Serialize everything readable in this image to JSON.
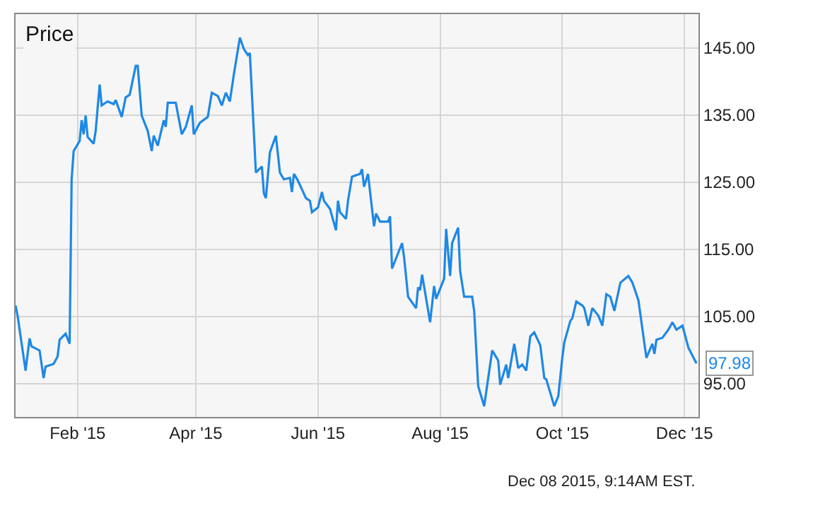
{
  "chart_data": {
    "type": "line",
    "title": "Price",
    "x": [
      "2015-01-01",
      "2015-01-02",
      "2015-01-06",
      "2015-01-08",
      "2015-01-09",
      "2015-01-13",
      "2015-01-15",
      "2015-01-16",
      "2015-01-20",
      "2015-01-22",
      "2015-01-23",
      "2015-01-26",
      "2015-01-28",
      "2015-01-29",
      "2015-01-30",
      "2015-02-02",
      "2015-02-03",
      "2015-02-04",
      "2015-02-05",
      "2015-02-06",
      "2015-02-09",
      "2015-02-10",
      "2015-02-12",
      "2015-02-13",
      "2015-02-16",
      "2015-02-19",
      "2015-02-20",
      "2015-02-23",
      "2015-02-25",
      "2015-02-27",
      "2015-03-02",
      "2015-03-03",
      "2015-03-05",
      "2015-03-08",
      "2015-03-10",
      "2015-03-11",
      "2015-03-13",
      "2015-03-16",
      "2015-03-17",
      "2015-03-18",
      "2015-03-22",
      "2015-03-25",
      "2015-03-27",
      "2015-03-30",
      "2015-03-31",
      "2015-04-03",
      "2015-04-07",
      "2015-04-09",
      "2015-04-12",
      "2015-04-14",
      "2015-04-16",
      "2015-04-18",
      "2015-04-20",
      "2015-04-23",
      "2015-04-25",
      "2015-04-27",
      "2015-04-28",
      "2015-05-01",
      "2015-05-04",
      "2015-05-05",
      "2015-05-06",
      "2015-05-08",
      "2015-05-11",
      "2015-05-13",
      "2015-05-15",
      "2015-05-18",
      "2015-05-19",
      "2015-05-20",
      "2015-05-22",
      "2015-05-26",
      "2015-05-28",
      "2015-05-29",
      "2015-06-01",
      "2015-06-03",
      "2015-06-04",
      "2015-06-07",
      "2015-06-10",
      "2015-06-11",
      "2015-06-12",
      "2015-06-15",
      "2015-06-16",
      "2015-06-18",
      "2015-06-22",
      "2015-06-23",
      "2015-06-24",
      "2015-06-26",
      "2015-06-29",
      "2015-06-30",
      "2015-07-02",
      "2015-07-06",
      "2015-07-07",
      "2015-07-08",
      "2015-07-13",
      "2015-07-14",
      "2015-07-16",
      "2015-07-20",
      "2015-07-21",
      "2015-07-22",
      "2015-07-23",
      "2015-07-27",
      "2015-07-29",
      "2015-07-30",
      "2015-08-03",
      "2015-08-04",
      "2015-08-06",
      "2015-08-07",
      "2015-08-10",
      "2015-08-11",
      "2015-08-13",
      "2015-08-17",
      "2015-08-18",
      "2015-08-20",
      "2015-08-23",
      "2015-08-25",
      "2015-08-27",
      "2015-08-30",
      "2015-08-31",
      "2015-09-03",
      "2015-09-04",
      "2015-09-07",
      "2015-09-09",
      "2015-09-11",
      "2015-09-13",
      "2015-09-15",
      "2015-09-17",
      "2015-09-20",
      "2015-09-22",
      "2015-09-23",
      "2015-09-27",
      "2015-09-29",
      "2015-10-01",
      "2015-10-02",
      "2015-10-05",
      "2015-10-06",
      "2015-10-08",
      "2015-10-11",
      "2015-10-12",
      "2015-10-14",
      "2015-10-16",
      "2015-10-19",
      "2015-10-21",
      "2015-10-23",
      "2015-10-25",
      "2015-10-27",
      "2015-10-30",
      "2015-11-03",
      "2015-11-05",
      "2015-11-08",
      "2015-11-12",
      "2015-11-15",
      "2015-11-16",
      "2015-11-17",
      "2015-11-20",
      "2015-11-23",
      "2015-11-25",
      "2015-11-27",
      "2015-11-30",
      "2015-12-03",
      "2015-12-07"
    ],
    "series": [
      {
        "color": "#1e88e5",
        "values": [
          106.6,
          105.1,
          96.9,
          101.7,
          100.5,
          99.9,
          95.8,
          97.5,
          97.9,
          99.0,
          101.5,
          102.4,
          100.9,
          125.4,
          129.6,
          131.1,
          134.2,
          132.1,
          134.9,
          131.7,
          130.7,
          132.6,
          139.5,
          136.4,
          137.0,
          136.6,
          137.2,
          134.7,
          137.6,
          138.0,
          142.3,
          142.3,
          134.9,
          132.6,
          129.6,
          131.9,
          130.4,
          134.2,
          133.2,
          136.8,
          136.8,
          132.1,
          133.2,
          136.4,
          132.1,
          133.8,
          134.7,
          138.3,
          137.8,
          136.4,
          138.3,
          137.0,
          141.0,
          146.5,
          144.8,
          143.9,
          144.2,
          126.4,
          127.3,
          123.3,
          122.6,
          129.4,
          131.9,
          126.4,
          125.4,
          125.6,
          123.5,
          126.2,
          125.2,
          122.6,
          122.2,
          120.5,
          121.2,
          123.5,
          122.2,
          121.0,
          117.8,
          122.2,
          120.5,
          119.5,
          122.2,
          125.8,
          126.2,
          126.9,
          124.3,
          126.2,
          118.4,
          120.3,
          119.1,
          119.1,
          119.9,
          112.1,
          115.9,
          113.8,
          107.9,
          106.2,
          109.3,
          108.9,
          111.2,
          104.1,
          109.5,
          107.6,
          110.6,
          118.0,
          111.0,
          115.9,
          118.2,
          111.7,
          107.9,
          107.9,
          105.8,
          94.6,
          91.6,
          95.8,
          99.9,
          98.4,
          94.8,
          97.8,
          95.8,
          100.9,
          97.3,
          97.8,
          96.9,
          102.0,
          102.6,
          100.7,
          95.8,
          95.6,
          91.6,
          93.1,
          98.8,
          101.1,
          104.3,
          104.7,
          107.2,
          106.6,
          106.2,
          103.6,
          106.2,
          105.1,
          103.6,
          108.3,
          107.9,
          105.8,
          110.0,
          111.0,
          110.0,
          107.4,
          98.8,
          100.9,
          99.4,
          101.5,
          101.8,
          103.0,
          104.1,
          103.0,
          103.6,
          100.3,
          97.98
        ]
      }
    ],
    "xlim": [
      "2015-01-01",
      "2015-12-08"
    ],
    "xticks": [
      {
        "value": "2015-02-01",
        "label": "Feb '15"
      },
      {
        "value": "2015-04-01",
        "label": "Apr '15"
      },
      {
        "value": "2015-06-01",
        "label": "Jun '15"
      },
      {
        "value": "2015-08-01",
        "label": "Aug '15"
      },
      {
        "value": "2015-10-01",
        "label": "Oct '15"
      },
      {
        "value": "2015-12-01",
        "label": "Dec '15"
      }
    ],
    "ylim": [
      90,
      150
    ],
    "yticks": [
      {
        "value": 95,
        "label": "95.00"
      },
      {
        "value": 105,
        "label": "105.00"
      },
      {
        "value": 115,
        "label": "115.00"
      },
      {
        "value": 125,
        "label": "125.00"
      },
      {
        "value": 135,
        "label": "135.00"
      },
      {
        "value": 145,
        "label": "145.00"
      }
    ],
    "grid": true,
    "marker": "none",
    "line_style": "solid",
    "annotations": [
      {
        "text": "97.98",
        "x": "2015-12-07",
        "y": 97.98
      },
      "Dec 08 2015, 9:14AM EST."
    ]
  }
}
